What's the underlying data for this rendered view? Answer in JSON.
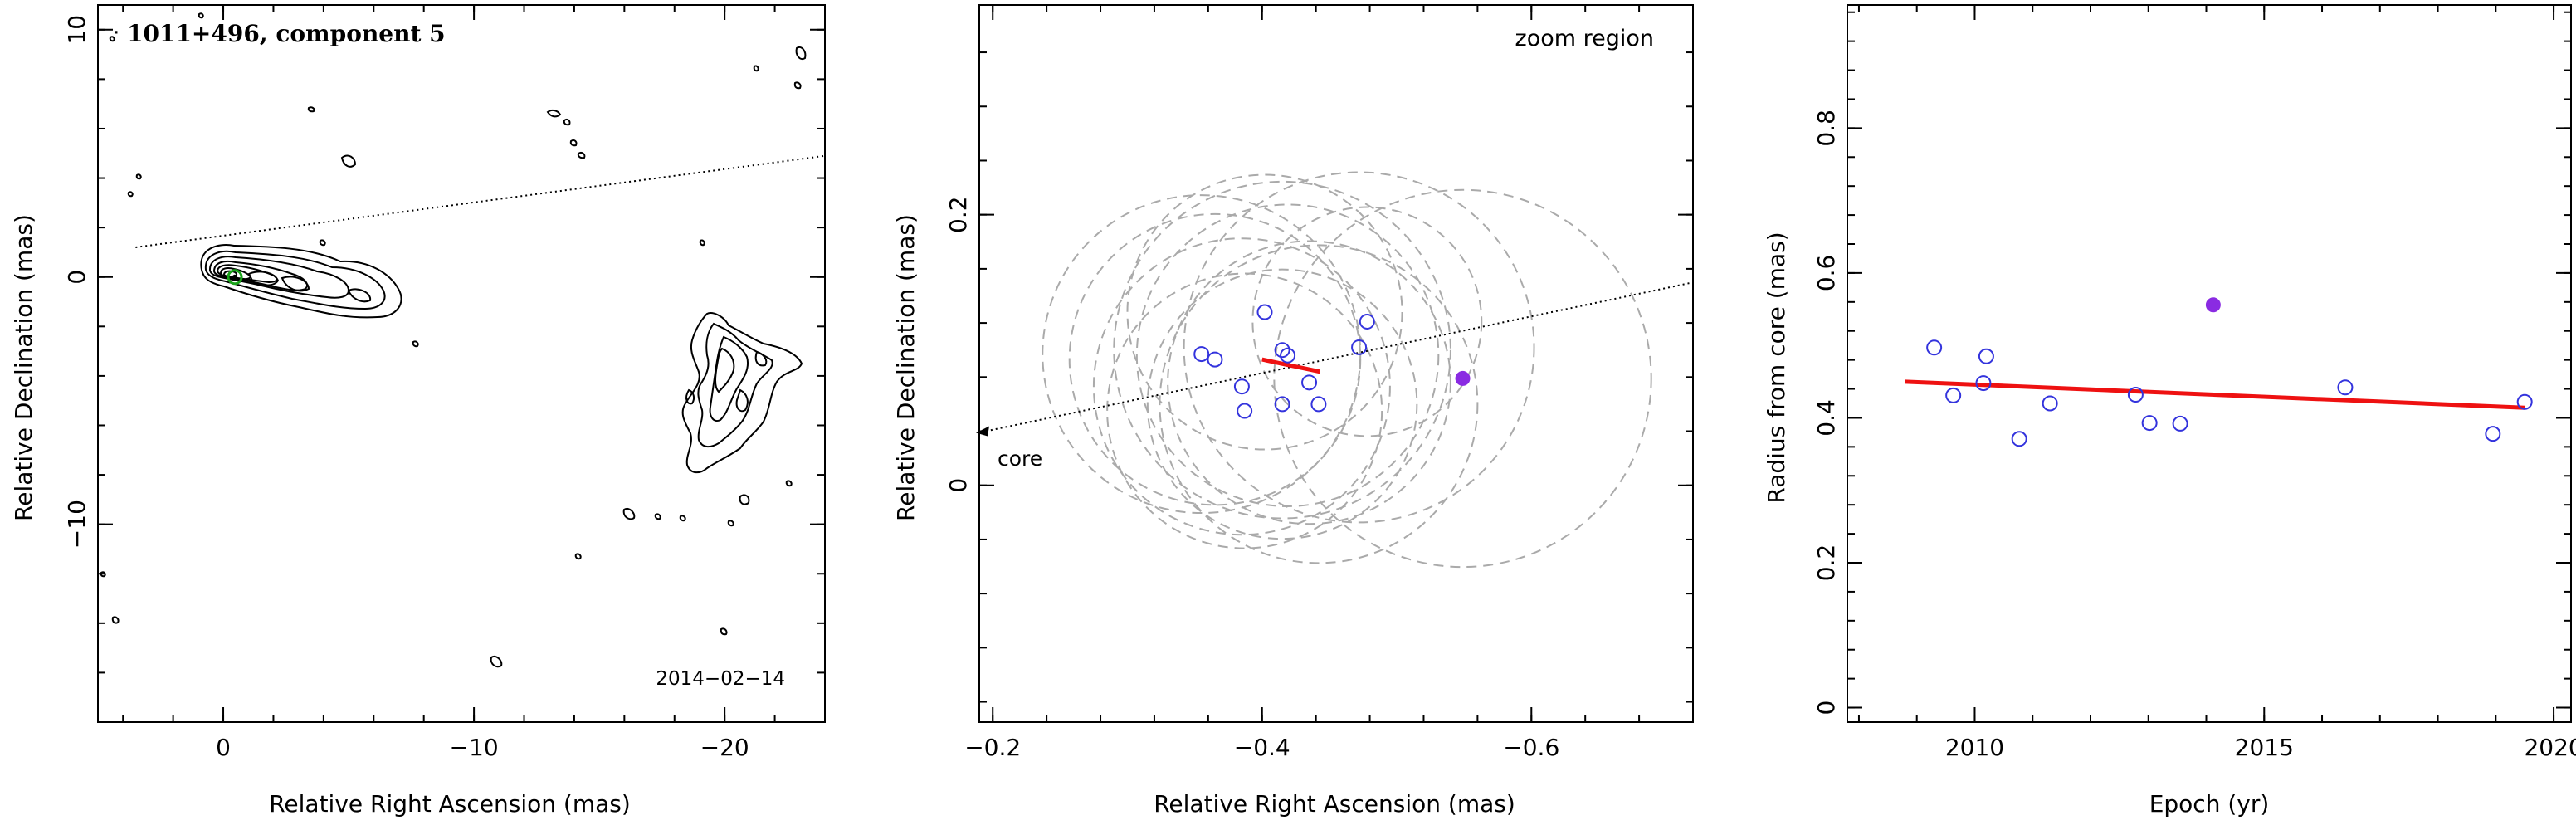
{
  "colors": {
    "data_open": "#3333dd",
    "data_filled": "#8a2be2",
    "fit_line": "#ee1111",
    "circles": "#aaaaaa",
    "core_marker": "#1aa31a"
  },
  "chart_data": [
    {
      "type": "contour",
      "title": "1011+496, component 5",
      "date_label": "2014−02−14",
      "xlabel": "Relative Right Ascension (mas)",
      "ylabel": "Relative Declination (mas)",
      "xlim": [
        5,
        -24
      ],
      "ylim": [
        -18,
        11
      ],
      "xticks": [
        0,
        -10,
        -20
      ],
      "xtick_labels": [
        "0",
        "−10",
        "−20"
      ],
      "yticks": [
        -10,
        0,
        10
      ],
      "ytick_labels": [
        "−10",
        "0",
        "10"
      ],
      "jet_axis_line": {
        "from": [
          3.5,
          1.2
        ],
        "to": [
          -24,
          4.9
        ]
      },
      "core": [
        0,
        0
      ],
      "component_5": [
        -0.55,
        0.08
      ]
    },
    {
      "type": "scatter",
      "annotation": "zoom region",
      "core_label": "core",
      "xlabel": "Relative Right Ascension (mas)",
      "ylabel": "Relative Declination (mas)",
      "xlim": [
        -0.19,
        -0.72
      ],
      "ylim": [
        -0.175,
        0.355
      ],
      "xticks": [
        -0.2,
        -0.4,
        -0.6
      ],
      "xtick_labels": [
        "−0.2",
        "−0.4",
        "−0.6"
      ],
      "yticks": [
        0,
        0.2
      ],
      "ytick_labels": [
        "0",
        "0.2"
      ],
      "jet_axis_line": {
        "from": [
          -0.19,
          0.04
        ],
        "to": [
          -0.72,
          0.15
        ]
      },
      "points": [
        {
          "x": -0.355,
          "y": 0.097
        },
        {
          "x": -0.365,
          "y": 0.093
        },
        {
          "x": -0.385,
          "y": 0.073
        },
        {
          "x": -0.387,
          "y": 0.055
        },
        {
          "x": -0.402,
          "y": 0.128
        },
        {
          "x": -0.415,
          "y": 0.1
        },
        {
          "x": -0.419,
          "y": 0.096
        },
        {
          "x": -0.415,
          "y": 0.06
        },
        {
          "x": -0.435,
          "y": 0.076
        },
        {
          "x": -0.442,
          "y": 0.06
        },
        {
          "x": -0.472,
          "y": 0.102
        },
        {
          "x": -0.478,
          "y": 0.121
        }
      ],
      "highlight_point": {
        "x": -0.549,
        "y": 0.079
      },
      "fit_segment": {
        "from": [
          -0.4,
          0.093
        ],
        "to": [
          -0.443,
          0.084
        ]
      },
      "circles": [
        {
          "cx": -0.355,
          "cy": 0.097,
          "r": 0.118
        },
        {
          "cx": -0.365,
          "cy": 0.093,
          "r": 0.108
        },
        {
          "cx": -0.385,
          "cy": 0.073,
          "r": 0.11
        },
        {
          "cx": -0.387,
          "cy": 0.055,
          "r": 0.102
        },
        {
          "cx": -0.402,
          "cy": 0.128,
          "r": 0.102
        },
        {
          "cx": -0.415,
          "cy": 0.1,
          "r": 0.125
        },
        {
          "cx": -0.419,
          "cy": 0.096,
          "r": 0.112
        },
        {
          "cx": -0.415,
          "cy": 0.06,
          "r": 0.1
        },
        {
          "cx": -0.435,
          "cy": 0.076,
          "r": 0.105
        },
        {
          "cx": -0.442,
          "cy": 0.06,
          "r": 0.118
        },
        {
          "cx": -0.472,
          "cy": 0.102,
          "r": 0.13
        },
        {
          "cx": -0.478,
          "cy": 0.121,
          "r": 0.085
        },
        {
          "cx": -0.549,
          "cy": 0.079,
          "r": 0.14
        }
      ]
    },
    {
      "type": "scatter",
      "xlabel": "Epoch (yr)",
      "ylabel": "Radius from core (mas)",
      "xlim": [
        2007.8,
        2020.3
      ],
      "ylim": [
        -0.02,
        0.97
      ],
      "xticks": [
        2010,
        2015,
        2020
      ],
      "xtick_labels": [
        "2010",
        "2015",
        "2020"
      ],
      "yticks": [
        0,
        0.2,
        0.4,
        0.6,
        0.8
      ],
      "ytick_labels": [
        "0",
        "0.2",
        "0.4",
        "0.6",
        "0.8"
      ],
      "points": [
        {
          "x": 2009.3,
          "y": 0.497
        },
        {
          "x": 2009.63,
          "y": 0.431
        },
        {
          "x": 2010.15,
          "y": 0.448
        },
        {
          "x": 2010.2,
          "y": 0.485
        },
        {
          "x": 2010.77,
          "y": 0.371
        },
        {
          "x": 2011.3,
          "y": 0.42
        },
        {
          "x": 2012.78,
          "y": 0.432
        },
        {
          "x": 2013.02,
          "y": 0.393
        },
        {
          "x": 2013.55,
          "y": 0.392
        },
        {
          "x": 2016.4,
          "y": 0.442
        },
        {
          "x": 2018.95,
          "y": 0.378
        },
        {
          "x": 2019.5,
          "y": 0.422
        }
      ],
      "highlight_point": {
        "x": 2014.12,
        "y": 0.556
      },
      "fit_line": {
        "from": [
          2008.8,
          0.45
        ],
        "to": [
          2019.5,
          0.414
        ]
      }
    }
  ]
}
